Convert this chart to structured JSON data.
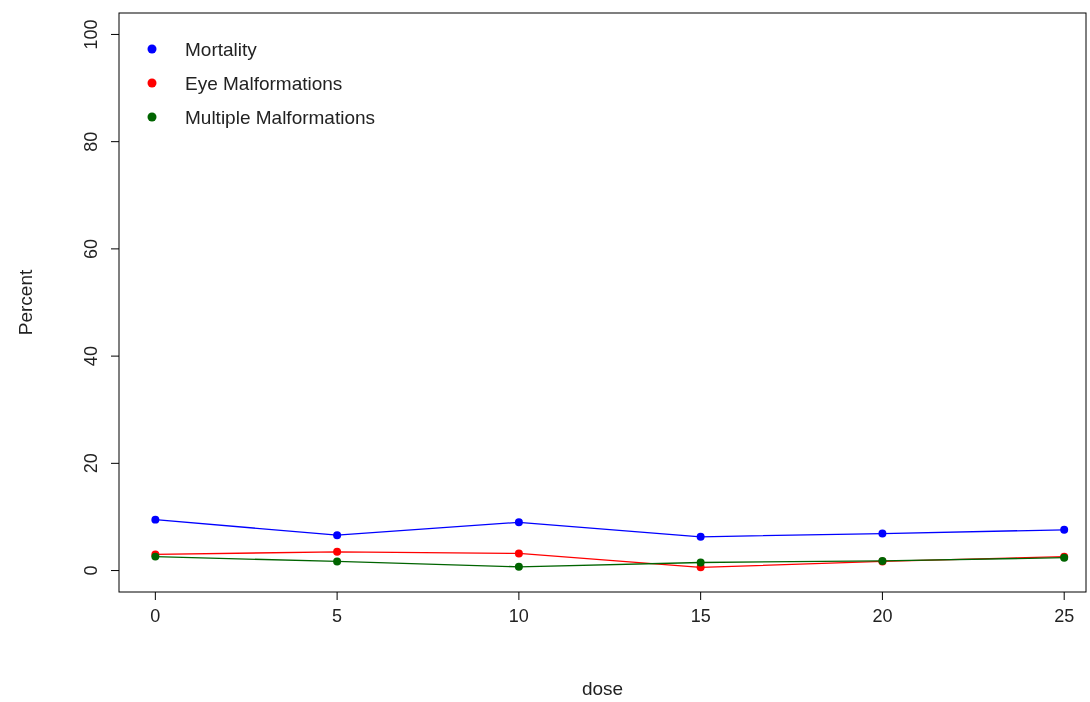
{
  "chart_data": {
    "type": "line",
    "xlabel": "dose",
    "ylabel": "Percent",
    "x": [
      0,
      5,
      10,
      15,
      20,
      25
    ],
    "series": [
      {
        "name": "Mortality",
        "color": "#0000ff",
        "values": [
          9.5,
          6.6,
          9.0,
          6.3,
          6.9,
          7.6
        ]
      },
      {
        "name": "Eye Malformations",
        "color": "#ff0000",
        "values": [
          3.0,
          3.5,
          3.2,
          0.6,
          1.7,
          2.6
        ]
      },
      {
        "name": "Multiple Malformations",
        "color": "#006400",
        "values": [
          2.6,
          1.7,
          0.7,
          1.5,
          1.8,
          2.4
        ]
      }
    ],
    "xlim": [
      -1,
      25.6
    ],
    "xticks": [
      0,
      5,
      10,
      15,
      20,
      25
    ],
    "ylim": [
      -4,
      104
    ],
    "yticks": [
      0,
      20,
      40,
      60,
      80,
      100
    ],
    "grid": false,
    "legend": "top left",
    "marker": "circle",
    "line_style": "solid"
  }
}
